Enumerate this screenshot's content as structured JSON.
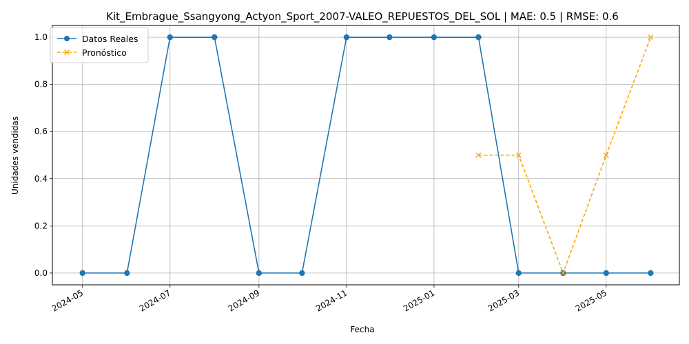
{
  "chart_data": {
    "type": "line",
    "title": "Kit_Embrague_Ssangyong_Actyon_Sport_2007-VALEO_REPUESTOS_DEL_SOL | MAE: 0.5 | RMSE: 0.6",
    "xlabel": "Fecha",
    "ylabel": "Unidades vendidas",
    "x_scale": "date",
    "xlim": [
      "2024-04-10",
      "2025-06-21"
    ],
    "ylim": [
      -0.05,
      1.05
    ],
    "x_ticks": [
      "2024-05-01",
      "2024-07-01",
      "2024-09-01",
      "2024-11-01",
      "2025-01-01",
      "2025-03-01",
      "2025-05-01"
    ],
    "x_tick_labels": [
      "2024-05",
      "2024-07",
      "2024-09",
      "2024-11",
      "2025-01",
      "2025-03",
      "2025-05"
    ],
    "y_ticks": [
      0.0,
      0.2,
      0.4,
      0.6,
      0.8,
      1.0
    ],
    "y_tick_labels": [
      "0.0",
      "0.2",
      "0.4",
      "0.6",
      "0.8",
      "1.0"
    ],
    "grid": true,
    "legend_position": "upper-left",
    "series": [
      {
        "name": "Datos Reales",
        "color": "#1f77b4",
        "line_style": "solid",
        "marker": "circle",
        "x": [
          "2024-05-01",
          "2024-06-01",
          "2024-07-01",
          "2024-08-01",
          "2024-09-01",
          "2024-10-01",
          "2024-11-01",
          "2024-12-01",
          "2025-01-01",
          "2025-02-01",
          "2025-03-01",
          "2025-04-01",
          "2025-05-01",
          "2025-06-01"
        ],
        "y": [
          0,
          0,
          1,
          1,
          0,
          0,
          1,
          1,
          1,
          1,
          0,
          0,
          0,
          0
        ]
      },
      {
        "name": "Pronóstico",
        "color": "#ffa500",
        "line_style": "dashed",
        "marker": "x",
        "x": [
          "2025-02-01",
          "2025-03-01",
          "2025-04-01",
          "2025-05-01",
          "2025-06-01"
        ],
        "y": [
          0.5,
          0.5,
          0.0,
          0.5,
          1.0
        ]
      }
    ]
  }
}
